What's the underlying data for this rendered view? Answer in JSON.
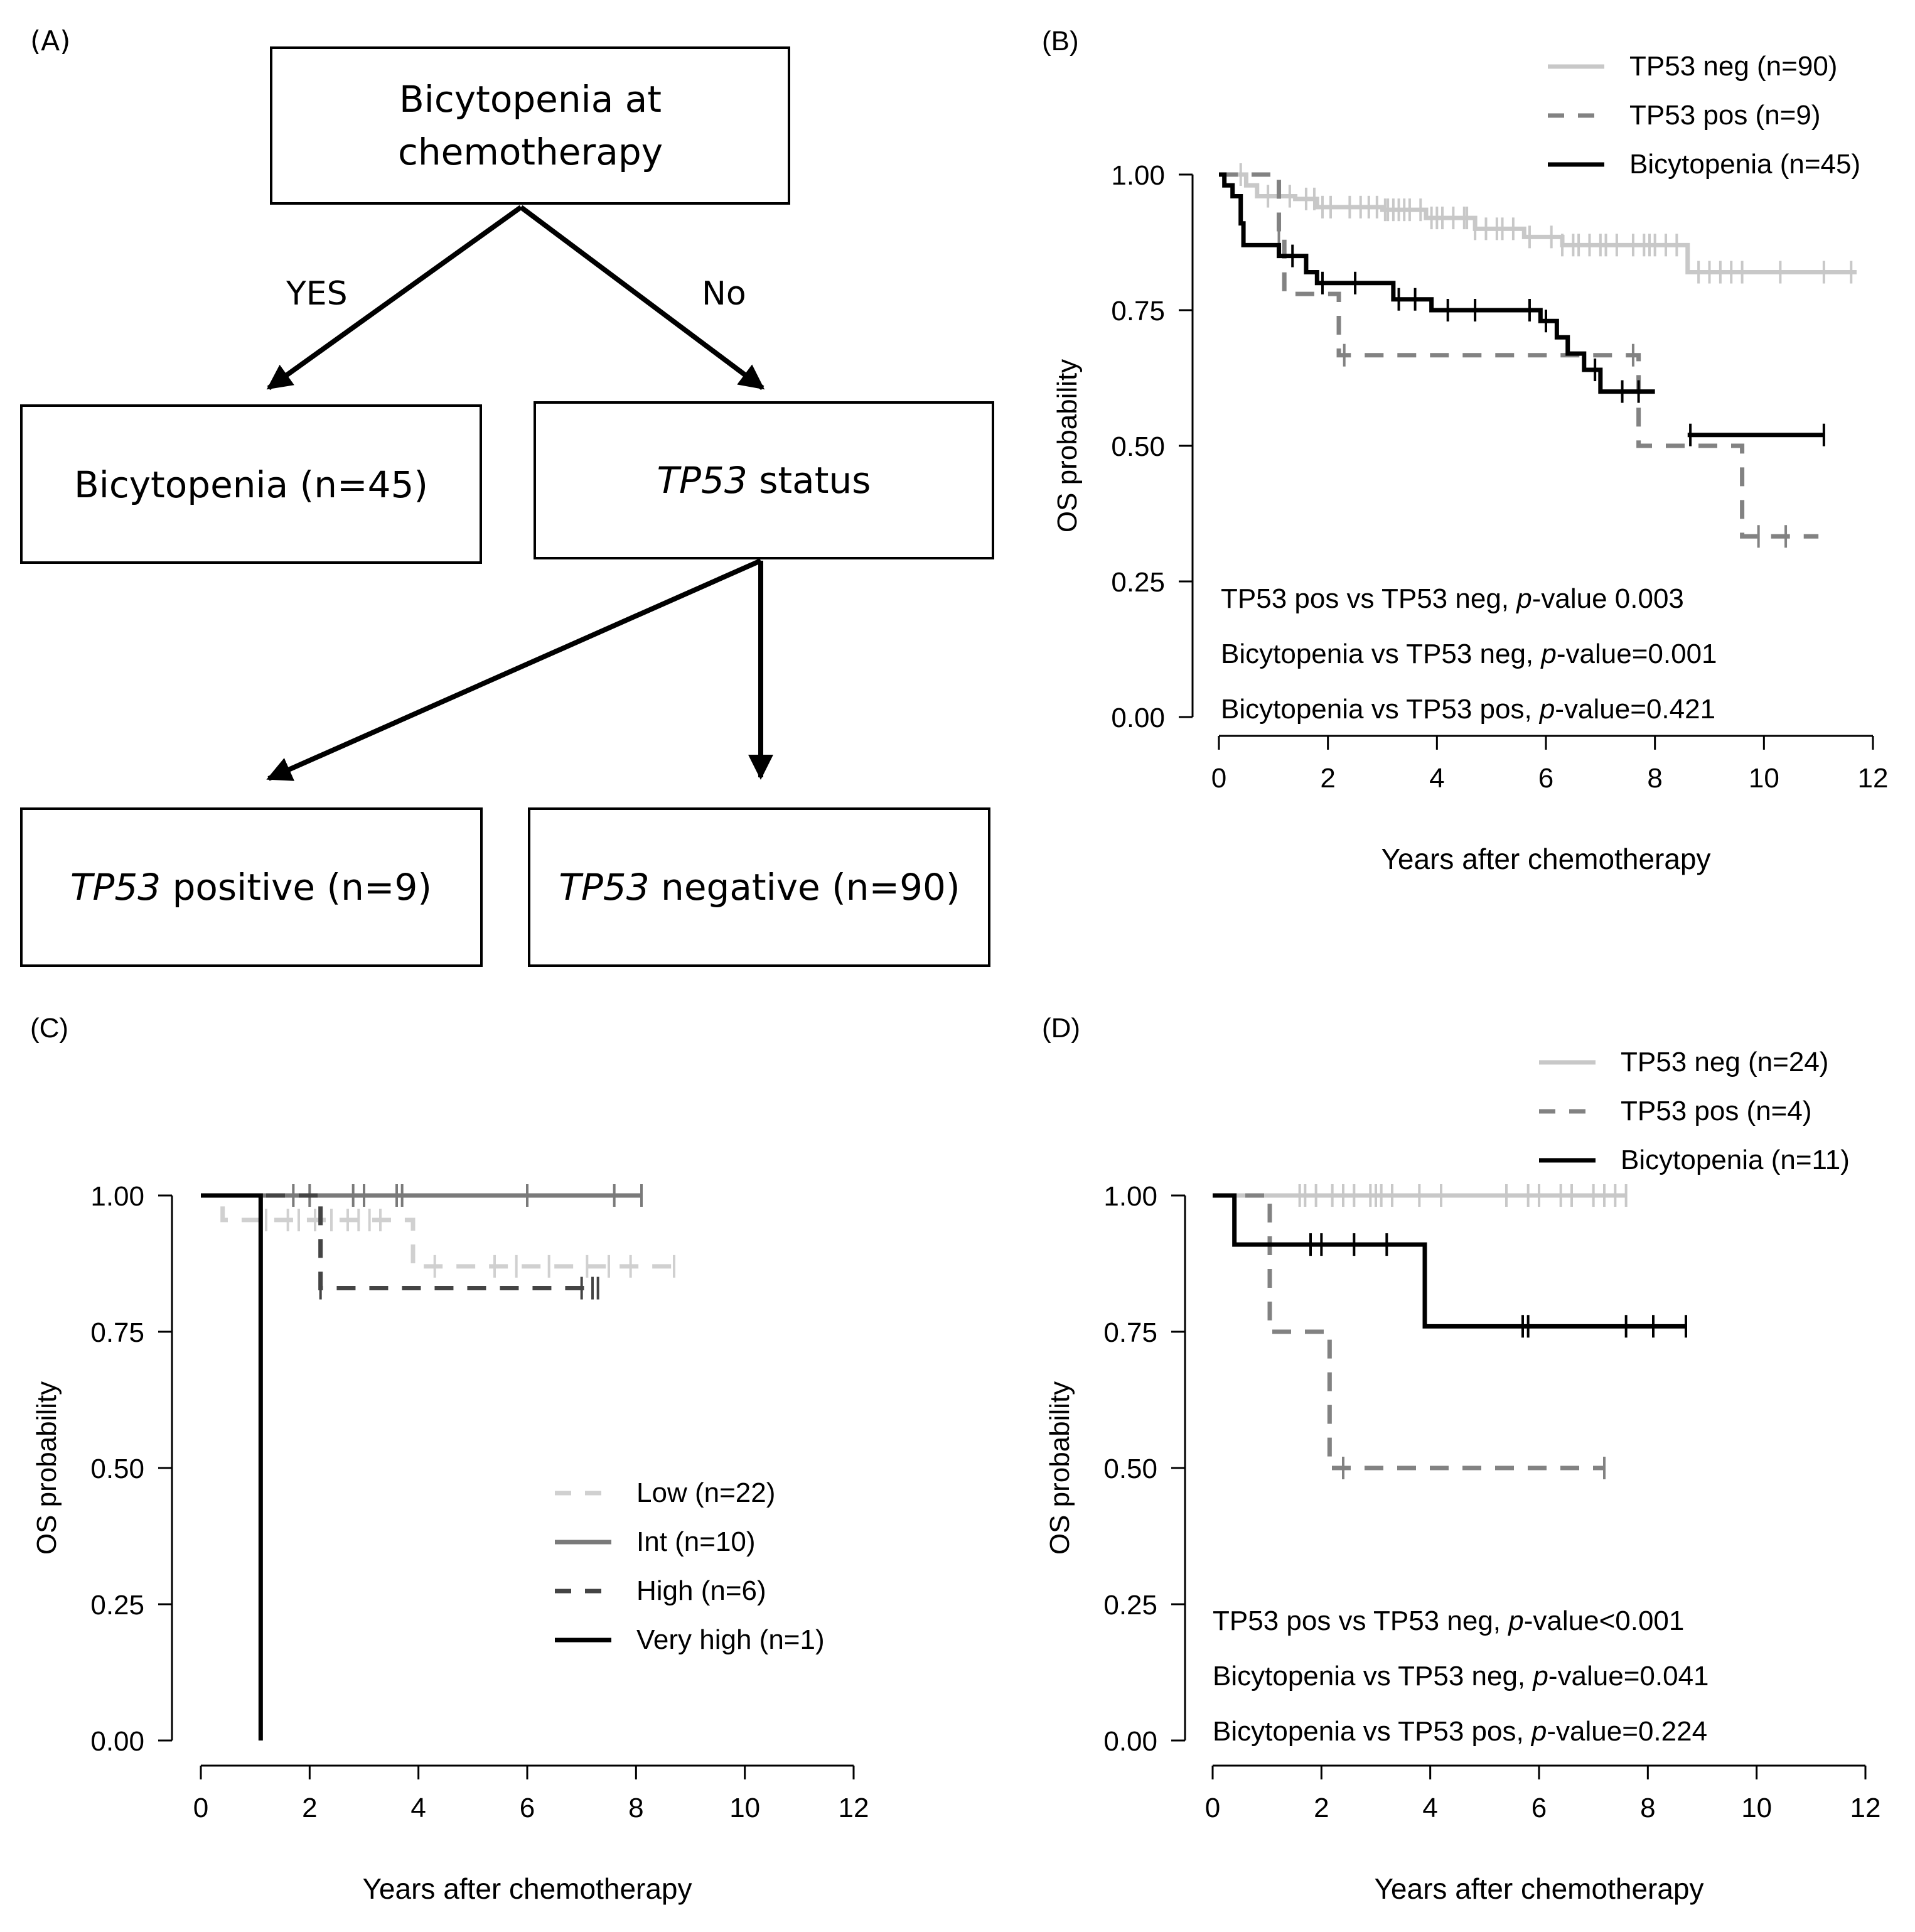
{
  "colors": {
    "tp53_neg": "#c8c8c8",
    "tp53_pos": "#828282",
    "bicytopenia": "#000000",
    "low": "#d0d0d0",
    "int": "#7a7a7a",
    "high": "#444444",
    "very_high": "#000000"
  },
  "panel_a": {
    "label": "(A)",
    "root_line1": "Bicytopenia at",
    "root_line2": "chemotherapy",
    "yes_label": "YES",
    "no_label": "No",
    "bicytopenia_box": "Bicytopenia (n=45)",
    "status_italic": "TP53",
    "status_rest": " status",
    "positive_italic": "TP53",
    "positive_rest": " positive (n=9)",
    "negative_italic": "TP53",
    "negative_rest": " negative (n=90)"
  },
  "chart_data": [
    {
      "panel": "B",
      "type": "line",
      "subtype": "kaplan-meier",
      "title": "(B)",
      "xlabel": "Years after chemotherapy",
      "ylabel": "OS probability",
      "xlim": [
        0,
        12
      ],
      "ylim": [
        0,
        1
      ],
      "xticks": [
        "0",
        "2",
        "4",
        "6",
        "8",
        "10",
        "12"
      ],
      "yticks": [
        "0.00",
        "0.25",
        "0.50",
        "0.75",
        "1.00"
      ],
      "legend_position": "top-right",
      "series": [
        {
          "name": "TP53 neg (n=90)",
          "key": "tp53_neg",
          "style": "solid",
          "steps": [
            [
              0,
              1
            ],
            [
              0.5,
              0.98
            ],
            [
              0.7,
              0.96
            ],
            [
              1.4,
              0.955
            ],
            [
              1.8,
              0.94
            ],
            [
              3.0,
              0.935
            ],
            [
              3.8,
              0.92
            ],
            [
              4.7,
              0.9
            ],
            [
              5.6,
              0.885
            ],
            [
              6.3,
              0.87
            ],
            [
              8.6,
              0.82
            ],
            [
              11.7,
              0.82
            ]
          ],
          "censor": [
            0.4,
            0.9,
            1.3,
            1.6,
            1.75,
            1.9,
            2.05,
            2.4,
            2.6,
            2.75,
            2.9,
            3.05,
            3.1,
            3.2,
            3.3,
            3.4,
            3.5,
            3.7,
            3.9,
            4.0,
            4.1,
            4.3,
            4.5,
            4.55,
            4.7,
            4.9,
            5.1,
            5.2,
            5.4,
            5.7,
            6.1,
            6.3,
            6.5,
            6.6,
            6.8,
            7.0,
            7.1,
            7.3,
            7.6,
            7.8,
            7.9,
            8.0,
            8.2,
            8.4,
            8.8,
            9.0,
            9.2,
            9.4,
            9.6,
            10.3,
            11.1,
            11.6
          ]
        },
        {
          "name": "TP53 pos (n=9)",
          "key": "tp53_pos",
          "style": "dashed",
          "steps": [
            [
              0,
              1
            ],
            [
              1.1,
              0.89
            ],
            [
              1.2,
              0.78
            ],
            [
              2.2,
              0.667
            ],
            [
              7.7,
              0.5
            ],
            [
              9.6,
              0.333
            ],
            [
              11.0,
              0.333
            ]
          ],
          "censor": [
            1.1,
            2.3,
            7.6,
            9.9,
            10.4
          ]
        },
        {
          "name": "Bicytopenia (n=45)",
          "key": "bicytopenia",
          "style": "solid",
          "steps": [
            [
              0,
              1
            ],
            [
              0.1,
              0.98
            ],
            [
              0.25,
              0.96
            ],
            [
              0.4,
              0.91
            ],
            [
              0.45,
              0.87
            ],
            [
              1.1,
              0.85
            ],
            [
              1.6,
              0.82
            ],
            [
              1.8,
              0.8
            ],
            [
              3.2,
              0.77
            ],
            [
              3.9,
              0.75
            ],
            [
              5.9,
              0.73
            ],
            [
              6.2,
              0.7
            ],
            [
              6.4,
              0.67
            ],
            [
              6.7,
              0.64
            ],
            [
              7.0,
              0.6
            ],
            [
              8.0,
              0.6
            ]
          ],
          "censor": [
            1.35,
            1.9,
            2.5,
            3.3,
            3.6,
            4.2,
            4.7,
            5.7,
            6.0,
            6.9,
            7.4,
            7.7
          ],
          "extra_segment": [
            8.6,
            11.1,
            0.52
          ],
          "extra_censor": [
            8.65,
            11.1
          ]
        }
      ],
      "annotations": [
        {
          "prefix": "TP53 pos vs TP53 neg, ",
          "italic": "p",
          "suffix": "-value  0.003"
        },
        {
          "prefix": "Bicytopenia vs TP53 neg, ",
          "italic": "p",
          "suffix": "-value=0.001"
        },
        {
          "prefix": "Bicytopenia vs TP53 pos, ",
          "italic": "p",
          "suffix": "-value=0.421"
        }
      ]
    },
    {
      "panel": "C",
      "type": "line",
      "subtype": "kaplan-meier",
      "title": "(C)",
      "xlabel": "Years after chemotherapy",
      "ylabel": "OS probability",
      "xlim": [
        0,
        12
      ],
      "ylim": [
        0,
        1
      ],
      "xticks": [
        "0",
        "2",
        "4",
        "6",
        "8",
        "10",
        "12"
      ],
      "yticks": [
        "0.00",
        "0.25",
        "0.50",
        "0.75",
        "1.00"
      ],
      "legend_position": "bottom-right",
      "series": [
        {
          "name": "Low (n=22)",
          "key": "low",
          "style": "dashed",
          "steps": [
            [
              0,
              1
            ],
            [
              0.4,
              0.955
            ],
            [
              3.9,
              0.87
            ],
            [
              8.7,
              0.87
            ]
          ],
          "censor": [
            1.2,
            1.6,
            1.8,
            2.1,
            2.4,
            2.7,
            2.9,
            3.1,
            3.3,
            4.3,
            5.4,
            5.8,
            6.4,
            7.1,
            7.5,
            7.9,
            8.7
          ]
        },
        {
          "name": "Int (n=10)",
          "key": "int",
          "style": "solid",
          "steps": [
            [
              0,
              1
            ],
            [
              8.1,
              1
            ]
          ],
          "censor": [
            1.7,
            2.0,
            2.8,
            3.0,
            3.6,
            3.7,
            6.0,
            7.6,
            8.1
          ]
        },
        {
          "name": "High (n=6)",
          "key": "high",
          "style": "dashed",
          "steps": [
            [
              0,
              1
            ],
            [
              2.2,
              0.83
            ],
            [
              7.3,
              0.83
            ]
          ],
          "censor": [
            2.2,
            7.0,
            7.2,
            7.3
          ]
        },
        {
          "name": "Very high (n=1)",
          "key": "very_high",
          "style": "solid",
          "steps": [
            [
              0,
              1
            ],
            [
              1.1,
              0
            ],
            [
              1.1,
              0
            ]
          ],
          "censor": []
        }
      ],
      "annotations": []
    },
    {
      "panel": "D",
      "type": "line",
      "subtype": "kaplan-meier",
      "title": "(D)",
      "xlabel": "Years after chemotherapy",
      "ylabel": "OS probability",
      "xlim": [
        0,
        12
      ],
      "ylim": [
        0,
        1
      ],
      "xticks": [
        "0",
        "2",
        "4",
        "6",
        "8",
        "10",
        "12"
      ],
      "yticks": [
        "0.00",
        "0.25",
        "0.50",
        "0.75",
        "1.00"
      ],
      "legend_position": "top-right",
      "series": [
        {
          "name": "TP53 neg (n=24)",
          "key": "tp53_neg",
          "style": "solid",
          "steps": [
            [
              0,
              1
            ],
            [
              7.6,
              1
            ]
          ],
          "censor": [
            1.6,
            1.7,
            1.9,
            2.2,
            2.4,
            2.6,
            2.9,
            3.0,
            3.1,
            3.3,
            3.8,
            4.2,
            5.4,
            5.8,
            6.0,
            6.4,
            6.6,
            7.0,
            7.2,
            7.4,
            7.6
          ]
        },
        {
          "name": "TP53 pos (n=4)",
          "key": "tp53_pos",
          "style": "dashed",
          "steps": [
            [
              0,
              1
            ],
            [
              1.05,
              0.75
            ],
            [
              2.15,
              0.5
            ],
            [
              7.2,
              0.5
            ]
          ],
          "censor": [
            2.4,
            7.2
          ]
        },
        {
          "name": "Bicytopenia (n=11)",
          "key": "bicytopenia",
          "style": "solid",
          "steps": [
            [
              0,
              1
            ],
            [
              0.4,
              0.91
            ],
            [
              3.9,
              0.76
            ],
            [
              8.7,
              0.76
            ]
          ],
          "censor": [
            1.8,
            2.0,
            2.6,
            3.2,
            5.7,
            5.8,
            7.6,
            8.1,
            8.7
          ]
        }
      ],
      "annotations": [
        {
          "prefix": "TP53 pos vs TP53 neg, ",
          "italic": "p",
          "suffix": "-value<0.001"
        },
        {
          "prefix": "Bicytopenia vs TP53 neg, ",
          "italic": "p",
          "suffix": "-value=0.041"
        },
        {
          "prefix": "Bicytopenia vs TP53 pos, ",
          "italic": "p",
          "suffix": "-value=0.224"
        }
      ]
    }
  ]
}
